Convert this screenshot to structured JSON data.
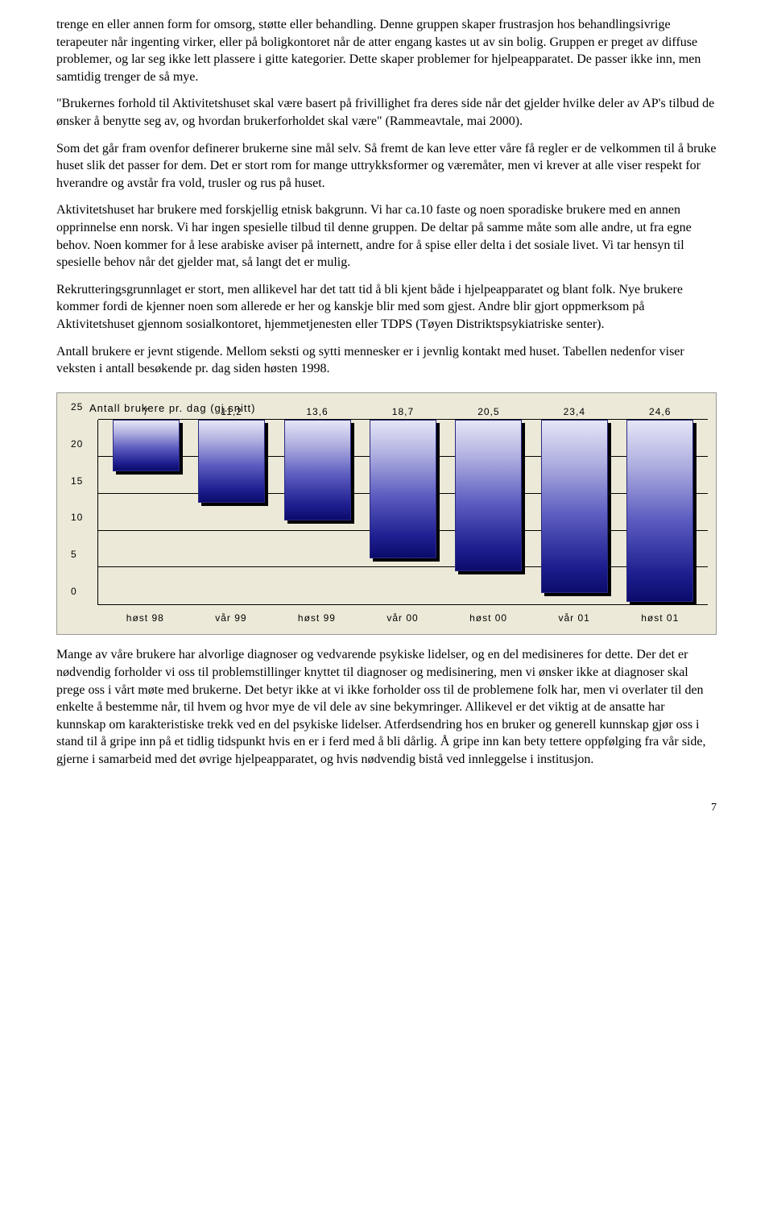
{
  "paragraphs": {
    "p1": "trenge en eller annen form for omsorg, støtte eller behandling. Denne gruppen skaper frustrasjon hos behandlingsivrige terapeuter når ingenting virker, eller på boligkontoret når de atter engang kastes ut av sin bolig. Gruppen er preget av diffuse problemer, og lar seg ikke lett plassere i gitte kategorier. Dette skaper problemer for hjelpeapparatet. De passer ikke inn, men samtidig trenger de så mye.",
    "p2": "\"Brukernes forhold til Aktivitetshuset skal være basert på frivillighet fra deres side når det gjelder hvilke deler av AP's tilbud de ønsker å benytte seg av, og hvordan brukerforholdet skal være\" (Rammeavtale, mai 2000).",
    "p3": "Som det går fram ovenfor definerer brukerne sine mål selv. Så fremt de kan leve etter våre få regler er de velkommen til å bruke huset slik det passer for dem. Det er stort rom for mange uttrykksformer og væremåter, men vi krever at alle viser respekt for hverandre og avstår fra vold, trusler og rus på huset.",
    "p4": "Aktivitetshuset har brukere med forskjellig etnisk bakgrunn. Vi  har ca.10 faste og noen sporadiske brukere med en annen opprinnelse enn norsk. Vi har ingen spesielle tilbud til denne gruppen. De deltar på samme måte som alle andre, ut fra egne behov. Noen kommer for å lese arabiske aviser på internett, andre for å spise eller delta i det sosiale livet. Vi tar hensyn til spesielle behov når det gjelder mat, så langt det er mulig.",
    "p5": "Rekrutteringsgrunnlaget er stort, men allikevel har det tatt tid å bli kjent både i hjelpeapparatet og blant folk. Nye brukere kommer fordi de kjenner noen som allerede er her og kanskje blir med som gjest. Andre blir gjort oppmerksom på Aktivitetshuset gjennom sosialkontoret, hjemmetjenesten eller TDPS (Tøyen Distriktspsykiatriske senter).",
    "p6": "Antall brukere er jevnt stigende. Mellom seksti og sytti mennesker er i jevnlig kontakt med huset. Tabellen nedenfor viser veksten i antall besøkende pr. dag siden høsten 1998.",
    "p7": "Mange av våre brukere har alvorlige diagnoser og vedvarende psykiske lidelser, og en del medisineres for dette. Der det er nødvendig forholder vi oss til problemstillinger knyttet til diagnoser og medisinering, men vi ønsker ikke at diagnoser skal prege oss i vårt møte med brukerne. Det betyr ikke at vi ikke forholder oss til de problemene folk har, men vi overlater til den enkelte å bestemme når, til hvem og hvor mye de vil dele av sine bekymringer. Allikevel er det viktig at de ansatte har kunnskap om karakteristiske trekk ved en del psykiske lidelser. Atferdsendring hos en bruker og generell kunnskap gjør oss i stand til å gripe inn på et tidlig tidspunkt hvis en er i ferd med å bli dårlig. Å gripe inn kan bety tettere oppfølging fra vår side, gjerne i samarbeid med det øvrige hjelpeapparatet, og hvis nødvendig bistå ved innleggelse i institusjon."
  },
  "chart": {
    "type": "bar",
    "title": "Antall brukere pr. dag (gj.snitt)",
    "background_color": "#ece9d8",
    "bar_gradient_top": "#e6e6f7",
    "bar_gradient_bottom": "#0b0b6b",
    "ylim_max": 25,
    "ytick_step": 5,
    "yticks": [
      "0",
      "5",
      "10",
      "15",
      "20",
      "25"
    ],
    "categories": [
      "høst 98",
      "vår 99",
      "høst 99",
      "vår 00",
      "høst 00",
      "vår 01",
      "høst 01"
    ],
    "values": [
      7,
      11.2,
      13.6,
      18.7,
      20.5,
      23.4,
      24.6
    ],
    "value_labels": [
      "7",
      "11,2",
      "13,6",
      "18,7",
      "20,5",
      "23,4",
      "24,6"
    ]
  },
  "page_number": "7"
}
